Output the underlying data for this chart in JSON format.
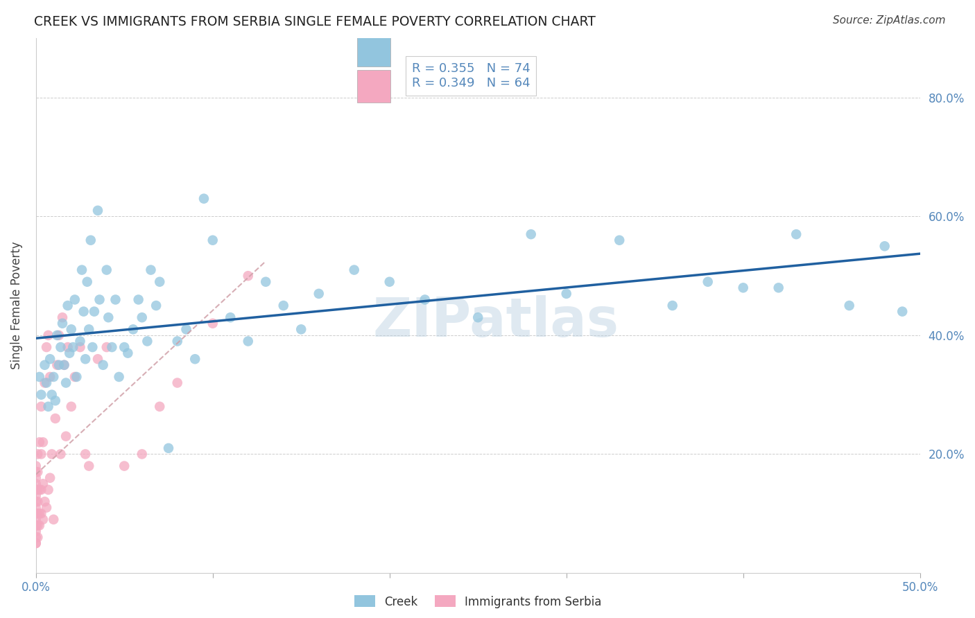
{
  "title": "CREEK VS IMMIGRANTS FROM SERBIA SINGLE FEMALE POVERTY CORRELATION CHART",
  "source": "Source: ZipAtlas.com",
  "ylabel": "Single Female Poverty",
  "watermark": "ZIPatlas",
  "xlim": [
    0.0,
    0.5
  ],
  "ylim": [
    0.0,
    0.9
  ],
  "xticks": [
    0.0,
    0.1,
    0.2,
    0.3,
    0.4,
    0.5
  ],
  "xticklabels": [
    "0.0%",
    "",
    "",
    "",
    "",
    "50.0%"
  ],
  "yticks": [
    0.0,
    0.2,
    0.4,
    0.6,
    0.8
  ],
  "yticklabels_right": [
    "",
    "20.0%",
    "40.0%",
    "60.0%",
    "80.0%"
  ],
  "legend_blue_R": "R = 0.355",
  "legend_blue_N": "N = 74",
  "legend_pink_R": "R = 0.349",
  "legend_pink_N": "N = 64",
  "blue_color": "#92c5de",
  "pink_color": "#f4a8c0",
  "blue_line_color": "#2060a0",
  "serbia_dash_color": "#d0a0a8",
  "grid_color": "#cccccc",
  "background_color": "#ffffff",
  "tick_color": "#5588bb",
  "creek_x": [
    0.002,
    0.003,
    0.005,
    0.006,
    0.007,
    0.008,
    0.009,
    0.01,
    0.011,
    0.012,
    0.013,
    0.014,
    0.015,
    0.016,
    0.017,
    0.018,
    0.019,
    0.02,
    0.021,
    0.022,
    0.023,
    0.025,
    0.026,
    0.027,
    0.028,
    0.029,
    0.03,
    0.031,
    0.032,
    0.033,
    0.035,
    0.036,
    0.038,
    0.04,
    0.041,
    0.043,
    0.045,
    0.047,
    0.05,
    0.052,
    0.055,
    0.058,
    0.06,
    0.063,
    0.065,
    0.068,
    0.07,
    0.075,
    0.08,
    0.085,
    0.09,
    0.095,
    0.1,
    0.11,
    0.12,
    0.13,
    0.14,
    0.15,
    0.16,
    0.18,
    0.2,
    0.22,
    0.25,
    0.28,
    0.3,
    0.33,
    0.36,
    0.4,
    0.43,
    0.46,
    0.48,
    0.49,
    0.38,
    0.42
  ],
  "creek_y": [
    0.33,
    0.3,
    0.35,
    0.32,
    0.28,
    0.36,
    0.3,
    0.33,
    0.29,
    0.4,
    0.35,
    0.38,
    0.42,
    0.35,
    0.32,
    0.45,
    0.37,
    0.41,
    0.38,
    0.46,
    0.33,
    0.39,
    0.51,
    0.44,
    0.36,
    0.49,
    0.41,
    0.56,
    0.38,
    0.44,
    0.61,
    0.46,
    0.35,
    0.51,
    0.43,
    0.38,
    0.46,
    0.33,
    0.38,
    0.37,
    0.41,
    0.46,
    0.43,
    0.39,
    0.51,
    0.45,
    0.49,
    0.21,
    0.39,
    0.41,
    0.36,
    0.63,
    0.56,
    0.43,
    0.39,
    0.49,
    0.45,
    0.41,
    0.47,
    0.51,
    0.49,
    0.46,
    0.43,
    0.57,
    0.47,
    0.56,
    0.45,
    0.48,
    0.57,
    0.45,
    0.55,
    0.44,
    0.49,
    0.48
  ],
  "serbia_x": [
    0.0,
    0.0,
    0.0,
    0.0,
    0.0,
    0.0,
    0.0,
    0.0,
    0.0,
    0.0,
    0.0,
    0.0,
    0.0,
    0.0,
    0.0,
    0.001,
    0.001,
    0.001,
    0.001,
    0.001,
    0.001,
    0.001,
    0.002,
    0.002,
    0.002,
    0.002,
    0.003,
    0.003,
    0.003,
    0.003,
    0.004,
    0.004,
    0.004,
    0.005,
    0.005,
    0.006,
    0.006,
    0.007,
    0.007,
    0.008,
    0.008,
    0.009,
    0.01,
    0.011,
    0.012,
    0.013,
    0.014,
    0.015,
    0.016,
    0.017,
    0.018,
    0.02,
    0.022,
    0.025,
    0.028,
    0.03,
    0.035,
    0.04,
    0.05,
    0.06,
    0.07,
    0.08,
    0.1,
    0.12
  ],
  "serbia_y": [
    0.05,
    0.06,
    0.07,
    0.08,
    0.09,
    0.1,
    0.11,
    0.12,
    0.13,
    0.14,
    0.15,
    0.16,
    0.17,
    0.18,
    0.05,
    0.06,
    0.08,
    0.1,
    0.12,
    0.14,
    0.17,
    0.2,
    0.08,
    0.1,
    0.14,
    0.22,
    0.1,
    0.14,
    0.2,
    0.28,
    0.09,
    0.15,
    0.22,
    0.12,
    0.32,
    0.11,
    0.38,
    0.14,
    0.4,
    0.16,
    0.33,
    0.2,
    0.09,
    0.26,
    0.35,
    0.4,
    0.2,
    0.43,
    0.35,
    0.23,
    0.38,
    0.28,
    0.33,
    0.38,
    0.2,
    0.18,
    0.36,
    0.38,
    0.18,
    0.2,
    0.28,
    0.32,
    0.42,
    0.5
  ]
}
